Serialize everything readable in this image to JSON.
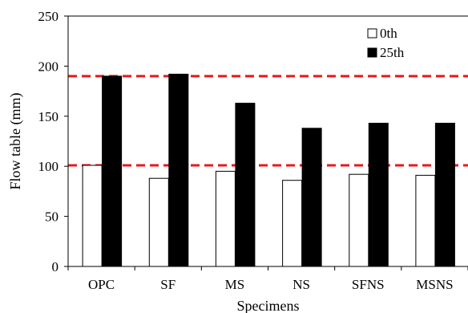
{
  "chart_data": {
    "type": "bar",
    "xlabel": "Specimens",
    "ylabel": "Flow table (mm)",
    "ylim": [
      0,
      250
    ],
    "yticks": [
      0,
      50,
      100,
      150,
      200,
      250
    ],
    "ytick_labels": [
      "0",
      "50",
      "100",
      "150",
      "200",
      "250"
    ],
    "categories": [
      "OPC",
      "SF",
      "MS",
      "NS",
      "SFNS",
      "MSNS"
    ],
    "series": [
      {
        "name": "0th",
        "values": [
          101,
          88,
          95,
          86,
          92,
          91
        ],
        "fill": "#ffffff",
        "stroke": "#000000"
      },
      {
        "name": "25th",
        "values": [
          190,
          192,
          163,
          138,
          143,
          143
        ],
        "fill": "#000000",
        "stroke": "#000000"
      }
    ],
    "reference_lines": [
      {
        "y": 190,
        "color": "#e8191c",
        "style": "dashed"
      },
      {
        "y": 101,
        "color": "#e8191c",
        "style": "dashed"
      }
    ],
    "legend_position": "top-right",
    "grid": false
  }
}
